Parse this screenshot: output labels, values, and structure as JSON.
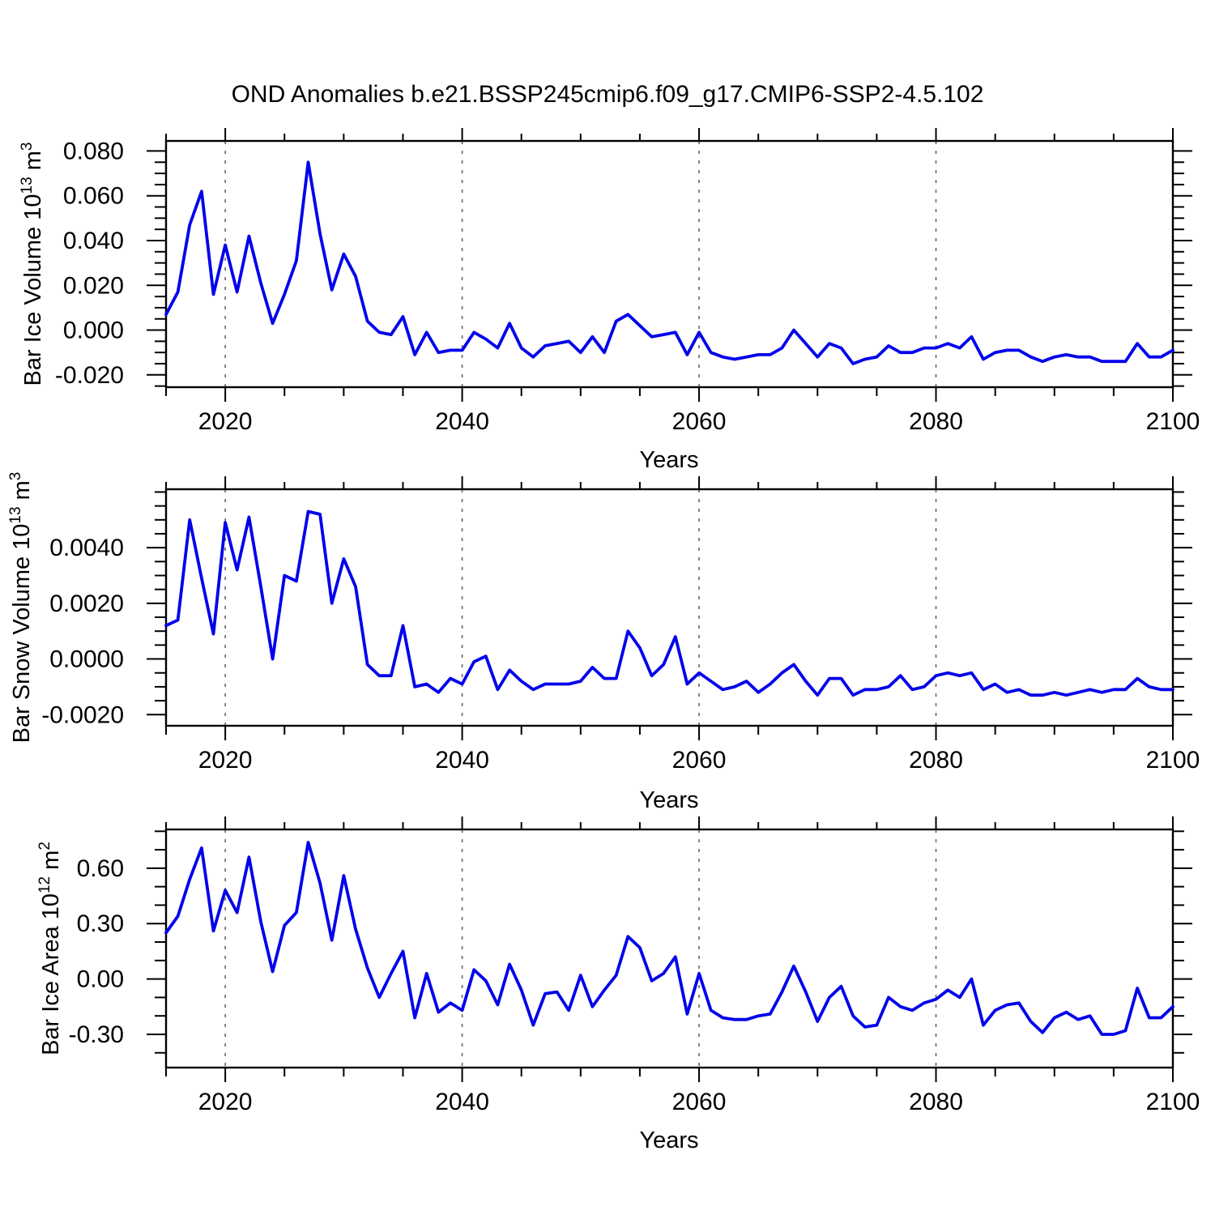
{
  "title": "OND Anomalies b.e21.BSSP245cmip6.f09_g17.CMIP6-SSP2-4.5.102",
  "colors": {
    "line": "#0000EB",
    "grid": "#666666",
    "axis": "#000000",
    "background": "#ffffff"
  },
  "chart_data": [
    {
      "type": "line",
      "id": "ice-volume",
      "series_color": "#0000EB",
      "xlabel": "Years",
      "ylabel": {
        "text": "Bar Ice Volume 10",
        "exp": "13",
        "unit": " m",
        "unit_exp": "3"
      },
      "x_start": 2015,
      "xlim": [
        2015,
        2100
      ],
      "xticks": [
        2020,
        2040,
        2060,
        2080,
        2100
      ],
      "xtick_labels": [
        "2020",
        "2040",
        "2060",
        "2080",
        "2100"
      ],
      "xminor_step": 5,
      "gridlines_x": [
        2020,
        2040,
        2060,
        2080
      ],
      "ylim": [
        -0.0255,
        0.0845
      ],
      "yticks": [
        -0.02,
        0.0,
        0.02,
        0.04,
        0.06,
        0.08
      ],
      "ytick_labels": [
        "-0.020",
        "0.000",
        "0.020",
        "0.040",
        "0.060",
        "0.080"
      ],
      "yminor_step": 0.005,
      "grid": "vertical-dashed-only",
      "legend": "none",
      "values": [
        0.007,
        0.017,
        0.047,
        0.062,
        0.016,
        0.038,
        0.017,
        0.042,
        0.021,
        0.003,
        0.016,
        0.031,
        0.075,
        0.043,
        0.018,
        0.034,
        0.024,
        0.004,
        -0.001,
        -0.002,
        0.006,
        -0.011,
        -0.001,
        -0.01,
        -0.009,
        -0.009,
        -0.001,
        -0.004,
        -0.008,
        0.003,
        -0.008,
        -0.012,
        -0.007,
        -0.006,
        -0.005,
        -0.01,
        -0.003,
        -0.01,
        0.004,
        0.007,
        0.002,
        -0.003,
        -0.002,
        -0.001,
        -0.011,
        -0.001,
        -0.01,
        -0.012,
        -0.013,
        -0.012,
        -0.011,
        -0.011,
        -0.008,
        0.0,
        -0.006,
        -0.012,
        -0.006,
        -0.008,
        -0.015,
        -0.013,
        -0.012,
        -0.007,
        -0.01,
        -0.01,
        -0.008,
        -0.008,
        -0.006,
        -0.008,
        -0.003,
        -0.013,
        -0.01,
        -0.009,
        -0.009,
        -0.012,
        -0.014,
        -0.012,
        -0.011,
        -0.012,
        -0.012,
        -0.014,
        -0.014,
        -0.014,
        -0.006,
        -0.012,
        -0.012,
        -0.009
      ]
    },
    {
      "type": "line",
      "id": "snow-volume",
      "series_color": "#0000EB",
      "xlabel": "Years",
      "ylabel": {
        "text": "Bar Snow Volume 10",
        "exp": "13",
        "unit": " m",
        "unit_exp": "3"
      },
      "x_start": 2015,
      "xlim": [
        2015,
        2100
      ],
      "xticks": [
        2020,
        2040,
        2060,
        2080,
        2100
      ],
      "xtick_labels": [
        "2020",
        "2040",
        "2060",
        "2080",
        "2100"
      ],
      "xminor_step": 5,
      "gridlines_x": [
        2020,
        2040,
        2060,
        2080
      ],
      "ylim": [
        -0.0024,
        0.0061
      ],
      "yticks": [
        -0.002,
        0.0,
        0.002,
        0.004
      ],
      "ytick_labels": [
        "-0.0020",
        "0.0000",
        "0.0020",
        "0.0040"
      ],
      "yminor_step": 0.0005,
      "grid": "vertical-dashed-only",
      "legend": "none",
      "values": [
        0.0012,
        0.0014,
        0.005,
        0.0029,
        0.0009,
        0.0049,
        0.0032,
        0.0051,
        0.0026,
        0.0,
        0.003,
        0.0028,
        0.0053,
        0.0052,
        0.002,
        0.0036,
        0.0026,
        -0.0002,
        -0.0006,
        -0.0006,
        0.0012,
        -0.001,
        -0.0009,
        -0.0012,
        -0.0007,
        -0.0009,
        -0.0001,
        0.0001,
        -0.0011,
        -0.0004,
        -0.0008,
        -0.0011,
        -0.0009,
        -0.0009,
        -0.0009,
        -0.0008,
        -0.0003,
        -0.0007,
        -0.0007,
        0.001,
        0.0004,
        -0.0006,
        -0.0002,
        0.0008,
        -0.0009,
        -0.0005,
        -0.0008,
        -0.0011,
        -0.001,
        -0.0008,
        -0.0012,
        -0.0009,
        -0.0005,
        -0.0002,
        -0.0008,
        -0.0013,
        -0.0007,
        -0.0007,
        -0.0013,
        -0.0011,
        -0.0011,
        -0.001,
        -0.0006,
        -0.0011,
        -0.001,
        -0.0006,
        -0.0005,
        -0.0006,
        -0.0005,
        -0.0011,
        -0.0009,
        -0.0012,
        -0.0011,
        -0.0013,
        -0.0013,
        -0.0012,
        -0.0013,
        -0.0012,
        -0.0011,
        -0.0012,
        -0.0011,
        -0.0011,
        -0.0007,
        -0.001,
        -0.0011,
        -0.0011
      ]
    },
    {
      "type": "line",
      "id": "ice-area",
      "series_color": "#0000EB",
      "xlabel": "Years",
      "ylabel": {
        "text": "Bar Ice Area 10",
        "exp": "12",
        "unit": " m",
        "unit_exp": "2"
      },
      "x_start": 2015,
      "xlim": [
        2015,
        2100
      ],
      "xticks": [
        2020,
        2040,
        2060,
        2080,
        2100
      ],
      "xtick_labels": [
        "2020",
        "2040",
        "2060",
        "2080",
        "2100"
      ],
      "xminor_step": 5,
      "gridlines_x": [
        2020,
        2040,
        2060,
        2080
      ],
      "ylim": [
        -0.48,
        0.81
      ],
      "yticks": [
        -0.3,
        0.0,
        0.3,
        0.6
      ],
      "ytick_labels": [
        "-0.30",
        "0.00",
        "0.30",
        "0.60"
      ],
      "yminor_step": 0.1,
      "grid": "vertical-dashed-only",
      "legend": "none",
      "values": [
        0.25,
        0.34,
        0.54,
        0.71,
        0.26,
        0.48,
        0.36,
        0.66,
        0.31,
        0.04,
        0.29,
        0.36,
        0.74,
        0.52,
        0.21,
        0.56,
        0.27,
        0.06,
        -0.1,
        0.03,
        0.15,
        -0.21,
        0.03,
        -0.18,
        -0.13,
        -0.17,
        0.05,
        -0.01,
        -0.14,
        0.08,
        -0.06,
        -0.25,
        -0.08,
        -0.07,
        -0.17,
        0.02,
        -0.15,
        -0.06,
        0.02,
        0.23,
        0.17,
        -0.01,
        0.03,
        0.12,
        -0.19,
        0.03,
        -0.17,
        -0.21,
        -0.22,
        -0.22,
        -0.2,
        -0.19,
        -0.07,
        0.07,
        -0.07,
        -0.23,
        -0.1,
        -0.04,
        -0.2,
        -0.26,
        -0.25,
        -0.1,
        -0.15,
        -0.17,
        -0.13,
        -0.11,
        -0.06,
        -0.1,
        0.0,
        -0.25,
        -0.17,
        -0.14,
        -0.13,
        -0.23,
        -0.29,
        -0.21,
        -0.18,
        -0.22,
        -0.2,
        -0.3,
        -0.3,
        -0.28,
        -0.05,
        -0.21,
        -0.21,
        -0.15
      ]
    }
  ]
}
